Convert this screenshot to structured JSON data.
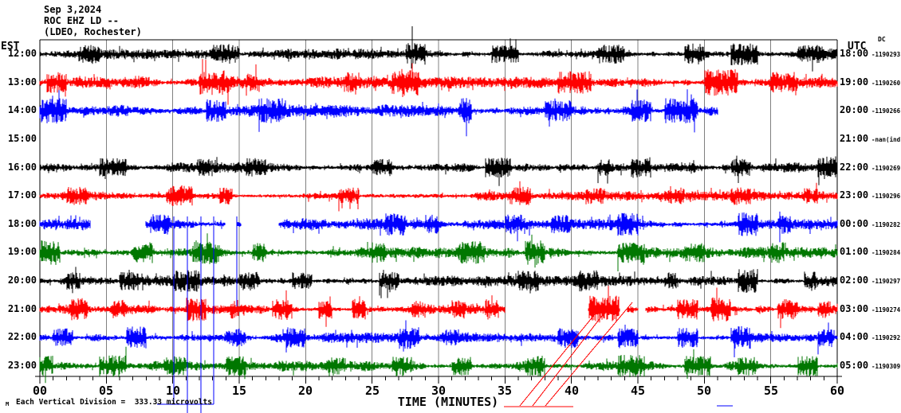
{
  "header": {
    "date": "Sep 3,2024",
    "station": "ROC EHZ LD --",
    "network": "(LDEO, Rochester)"
  },
  "left_axis": {
    "label": "EST"
  },
  "right_axis": {
    "label": "UTC",
    "dc_label": "DC"
  },
  "x_axis": {
    "title": "TIME (MINUTES)",
    "tick_labels": [
      "00",
      "05",
      "10",
      "15",
      "20",
      "25",
      "30",
      "35",
      "40",
      "45",
      "50",
      "55",
      "60"
    ],
    "minutes_per_major": 5
  },
  "footer": {
    "text": "Each Vertical Division =  333.33 microvolts",
    "corner_glyph": "M"
  },
  "colors": {
    "trace_black": "#000000",
    "trace_red": "#ff0000",
    "trace_blue": "#0000ff",
    "trace_green": "#007700",
    "gridline": "#808080",
    "background": "#ffffff"
  },
  "chart_data": {
    "type": "line",
    "title": "Helicorder ROC EHZ LD -- (LDEO, Rochester) Sep 3,2024",
    "xlabel": "TIME (MINUTES)",
    "x_range": [
      0,
      60
    ],
    "grid": "vertical every 5 minutes",
    "legend_position": "none",
    "layout": {
      "plot_left": 50,
      "plot_right": 1050,
      "plot_top": 50,
      "axis_y": 473,
      "row0_y": 68,
      "row_spacing": 35.64,
      "minor_tick_len": 5,
      "major_tick_len": 9
    },
    "rows": [
      {
        "est": "12:00",
        "utc": "18:00",
        "dc": "-1190293",
        "color": "#000000",
        "seed": 11,
        "amp": 4.5,
        "segments": [
          [
            0,
            60
          ]
        ],
        "bursts": [
          [
            3,
            4.5,
            2.2
          ],
          [
            13,
            15,
            2.4
          ],
          [
            27.5,
            29,
            2.6
          ],
          [
            34,
            36,
            2.0
          ],
          [
            42,
            44,
            2.2
          ],
          [
            48.5,
            50,
            2.4
          ],
          [
            52,
            54,
            2.6
          ],
          [
            57,
            59,
            2.2
          ]
        ],
        "spikes": [
          {
            "min": 28.0,
            "dy": -35
          }
        ]
      },
      {
        "est": "13:00",
        "utc": "19:00",
        "dc": "-1190260",
        "color": "#ff0000",
        "seed": 22,
        "amp": 5,
        "segments": [
          [
            0,
            60
          ]
        ],
        "bursts": [
          [
            0.5,
            2,
            2.2
          ],
          [
            12,
            14.5,
            2.6
          ],
          [
            15.5,
            16.5,
            2.0
          ],
          [
            23,
            24,
            2.2
          ],
          [
            26.5,
            28.5,
            2.8
          ],
          [
            39,
            41.5,
            2.4
          ],
          [
            50,
            52.5,
            2.8
          ],
          [
            55,
            57,
            2.2
          ]
        ],
        "spikes": []
      },
      {
        "est": "14:00",
        "utc": "20:00",
        "dc": "-1190266",
        "color": "#0000ff",
        "seed": 33,
        "amp": 5.5,
        "segments": [
          [
            0,
            51
          ]
        ],
        "bursts": [
          [
            0,
            2,
            2.4
          ],
          [
            12.5,
            14,
            2.2
          ],
          [
            16.5,
            18.5,
            2.4
          ],
          [
            31.5,
            32.5,
            2.4
          ],
          [
            38,
            40,
            2.0
          ],
          [
            44.5,
            46,
            2.2
          ],
          [
            47,
            49.5,
            2.4
          ]
        ],
        "spikes": [
          {
            "min": 32.1,
            "dy": 32
          },
          {
            "min": 32.1,
            "dy": -16
          }
        ]
      },
      {
        "est": "15:00",
        "utc": "21:00",
        "dc": "-nan(ind",
        "color": "#000000",
        "seed": 44,
        "amp": 0,
        "segments": [],
        "bursts": [],
        "spikes": []
      },
      {
        "est": "16:00",
        "utc": "22:00",
        "dc": "-1190269",
        "color": "#000000",
        "seed": 55,
        "amp": 4.5,
        "segments": [
          [
            0,
            60
          ]
        ],
        "bursts": [
          [
            4.5,
            6.5,
            2.2
          ],
          [
            12,
            13,
            2.0
          ],
          [
            15.5,
            17,
            2.2
          ],
          [
            25,
            26.5,
            2.0
          ],
          [
            33.5,
            35.5,
            2.4
          ],
          [
            42,
            43,
            2.0
          ],
          [
            44.5,
            46,
            2.4
          ],
          [
            52,
            53.5,
            2.0
          ],
          [
            58.5,
            60,
            2.8
          ]
        ],
        "spikes": []
      },
      {
        "est": "17:00",
        "utc": "23:00",
        "dc": "-1190296",
        "color": "#ff0000",
        "seed": 66,
        "amp": 4,
        "segments": [
          [
            0,
            60
          ]
        ],
        "bursts": [
          [
            2,
            3.5,
            2.4
          ],
          [
            9.5,
            11.5,
            2.8
          ],
          [
            13.5,
            14.5,
            2.2
          ],
          [
            22.5,
            24,
            2.2
          ],
          [
            35.5,
            37,
            2.4
          ],
          [
            41,
            42.5,
            2.2
          ],
          [
            47,
            48.5,
            2.2
          ],
          [
            52,
            53.5,
            2.4
          ],
          [
            57.5,
            58.5,
            2.0
          ]
        ],
        "spikes": []
      },
      {
        "est": "18:00",
        "utc": "00:00",
        "dc": "-1190282",
        "color": "#0000ff",
        "seed": 77,
        "amp": 5,
        "segments": [
          [
            0,
            3.8
          ],
          [
            8,
            13.9
          ],
          [
            14.8,
            15.1
          ],
          [
            18,
            60
          ]
        ],
        "bursts": [
          [
            8.3,
            9.8,
            2.2
          ],
          [
            26,
            27.5,
            2.4
          ],
          [
            29,
            30,
            2.0
          ],
          [
            35,
            36.5,
            2.2
          ],
          [
            38.5,
            40,
            2.0
          ],
          [
            43.5,
            45,
            2.4
          ],
          [
            52.5,
            54,
            2.6
          ],
          [
            55.5,
            56.5,
            2.0
          ]
        ],
        "spikes": []
      },
      {
        "est": "19:00",
        "utc": "01:00",
        "dc": "-1190284",
        "color": "#007700",
        "seed": 88,
        "amp": 5,
        "segments": [
          [
            0,
            60
          ]
        ],
        "bursts": [
          [
            0,
            1.5,
            2.6
          ],
          [
            7,
            8.5,
            2.2
          ],
          [
            11.5,
            13.5,
            2.4
          ],
          [
            16,
            17,
            2.0
          ],
          [
            25,
            26,
            2.2
          ],
          [
            31.5,
            33.5,
            2.4
          ],
          [
            36.5,
            38,
            2.6
          ],
          [
            43.5,
            45.5,
            2.2
          ],
          [
            48.5,
            50,
            2.0
          ],
          [
            55,
            56,
            2.2
          ]
        ],
        "spikes": []
      },
      {
        "est": "20:00",
        "utc": "02:00",
        "dc": "-1190297",
        "color": "#000000",
        "seed": 99,
        "amp": 4.5,
        "segments": [
          [
            0,
            60
          ]
        ],
        "bursts": [
          [
            2,
            3,
            2.0
          ],
          [
            6,
            7.5,
            2.2
          ],
          [
            10,
            12,
            2.6
          ],
          [
            15,
            16.5,
            2.2
          ],
          [
            19,
            20.5,
            2.0
          ],
          [
            25.5,
            27,
            2.2
          ],
          [
            36,
            37.5,
            2.4
          ],
          [
            40.5,
            42,
            2.6
          ],
          [
            47,
            48,
            2.0
          ],
          [
            52.5,
            54,
            2.8
          ],
          [
            57.5,
            58.5,
            2.2
          ]
        ],
        "spikes": []
      },
      {
        "est": "21:00",
        "utc": "03:00",
        "dc": "-1190274",
        "color": "#ff0000",
        "seed": 110,
        "amp": 4.5,
        "segments": [
          [
            0,
            35
          ],
          [
            41.3,
            43.6
          ],
          [
            44.2,
            45.0
          ],
          [
            45.6,
            60
          ]
        ],
        "bursts": [
          [
            2.3,
            3.6,
            2.6
          ],
          [
            5.5,
            6.5,
            2.2
          ],
          [
            11,
            12.5,
            2.8
          ],
          [
            14.3,
            15,
            2.2
          ],
          [
            17.5,
            19,
            2.6
          ],
          [
            21,
            22,
            2.2
          ],
          [
            23.5,
            24.5,
            2.4
          ],
          [
            28,
            29,
            2.0
          ],
          [
            31,
            32,
            2.2
          ],
          [
            33.5,
            34.5,
            2.4
          ],
          [
            41.3,
            43.6,
            3.2
          ],
          [
            48,
            49.5,
            2.4
          ],
          [
            50.5,
            52,
            2.8
          ],
          [
            55.5,
            57,
            2.4
          ],
          [
            58.5,
            59.5,
            2.0
          ]
        ],
        "spikes": []
      },
      {
        "est": "22:00",
        "utc": "04:00",
        "dc": "-1190292",
        "color": "#0000ff",
        "seed": 121,
        "amp": 4.5,
        "segments": [
          [
            0,
            60
          ]
        ],
        "bursts": [
          [
            1,
            2.5,
            2.2
          ],
          [
            6.5,
            8,
            2.6
          ],
          [
            14,
            15.5,
            2.2
          ],
          [
            18.5,
            20,
            2.4
          ],
          [
            27,
            28.5,
            2.6
          ],
          [
            30.5,
            31.5,
            2.0
          ],
          [
            39,
            40.5,
            2.4
          ],
          [
            43.5,
            45,
            2.2
          ],
          [
            48,
            49.5,
            2.4
          ],
          [
            52,
            53.5,
            2.8
          ],
          [
            58.5,
            59.8,
            2.2
          ]
        ],
        "spikes": []
      },
      {
        "est": "23:00",
        "utc": "05:00",
        "dc": "-1190309",
        "color": "#007700",
        "seed": 132,
        "amp": 4.5,
        "segments": [
          [
            0,
            60
          ]
        ],
        "bursts": [
          [
            0,
            1,
            2.4
          ],
          [
            4.5,
            6.5,
            2.6
          ],
          [
            9.5,
            11,
            2.2
          ],
          [
            14,
            15.5,
            2.4
          ],
          [
            21.5,
            23,
            2.2
          ],
          [
            26.5,
            28,
            2.4
          ],
          [
            31,
            32.5,
            2.2
          ],
          [
            36.5,
            38,
            2.4
          ],
          [
            43.5,
            45.5,
            2.6
          ],
          [
            48.5,
            50.5,
            2.4
          ],
          [
            52.5,
            54,
            2.2
          ],
          [
            57,
            58.5,
            2.4
          ]
        ],
        "spikes": [
          {
            "min": 48.7,
            "dy": 16
          }
        ]
      }
    ],
    "overlays": [
      {
        "name": "clipped-spike",
        "color": "#0000ff",
        "x1": 218,
        "y1": 272,
        "x2": 218,
        "y2": 508
      },
      {
        "name": "clipped-spike",
        "color": "#0000ff",
        "x1": 235,
        "y1": 272,
        "x2": 235,
        "y2": 508
      },
      {
        "name": "clipped-spike",
        "color": "#0000ff",
        "x1": 252,
        "y1": 272,
        "x2": 252,
        "y2": 508
      },
      {
        "name": "clipped-spike",
        "color": "#0000ff",
        "x1": 268,
        "y1": 272,
        "x2": 268,
        "y2": 508
      },
      {
        "name": "clip-connector",
        "color": "#0000ff",
        "x1": 197,
        "y1": 508,
        "x2": 268,
        "y2": 508
      },
      {
        "name": "clipped-spike",
        "color": "#0000ff",
        "x1": 235,
        "y1": 508,
        "x2": 235,
        "y2": 519
      },
      {
        "name": "clipped-spike",
        "color": "#0000ff",
        "x1": 252,
        "y1": 508,
        "x2": 252,
        "y2": 519
      },
      {
        "name": "clipped-spike",
        "color": "#0000ff",
        "x1": 297,
        "y1": 272,
        "x2": 297,
        "y2": 385
      },
      {
        "name": "clip-connector",
        "color": "#0000ff",
        "x1": 899,
        "y1": 510,
        "x2": 919,
        "y2": 510
      },
      {
        "name": "clip-connector",
        "color": "#ff0000",
        "x1": 632,
        "y1": 511,
        "x2": 719,
        "y2": 511
      },
      {
        "name": "offscale-diagonal",
        "color": "#ff0000",
        "x1": 652,
        "y1": 510,
        "x2": 750,
        "y2": 390
      },
      {
        "name": "offscale-diagonal",
        "color": "#ff0000",
        "x1": 668,
        "y1": 510,
        "x2": 764,
        "y2": 385
      },
      {
        "name": "offscale-diagonal",
        "color": "#ff0000",
        "x1": 684,
        "y1": 510,
        "x2": 793,
        "y2": 380
      },
      {
        "name": "clipped-spike",
        "color": "#000000",
        "x1": 517,
        "y1": 33,
        "x2": 517,
        "y2": 68
      }
    ]
  }
}
